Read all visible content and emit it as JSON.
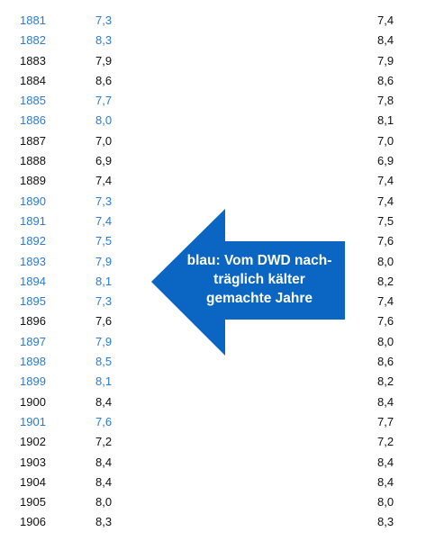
{
  "rows": [
    {
      "year": "1881",
      "v1": "7,3",
      "v2": "7,4",
      "adjusted": true
    },
    {
      "year": "1882",
      "v1": "8,3",
      "v2": "8,4",
      "adjusted": true
    },
    {
      "year": "1883",
      "v1": "7,9",
      "v2": "7,9",
      "adjusted": false
    },
    {
      "year": "1884",
      "v1": "8,6",
      "v2": "8,6",
      "adjusted": false
    },
    {
      "year": "1885",
      "v1": "7,7",
      "v2": "7,8",
      "adjusted": true
    },
    {
      "year": "1886",
      "v1": "8,0",
      "v2": "8,1",
      "adjusted": true
    },
    {
      "year": "1887",
      "v1": "7,0",
      "v2": "7,0",
      "adjusted": false
    },
    {
      "year": "1888",
      "v1": "6,9",
      "v2": "6,9",
      "adjusted": false
    },
    {
      "year": "1889",
      "v1": "7,4",
      "v2": "7,4",
      "adjusted": false
    },
    {
      "year": "1890",
      "v1": "7,3",
      "v2": "7,4",
      "adjusted": true
    },
    {
      "year": "1891",
      "v1": "7,4",
      "v2": "7,5",
      "adjusted": true
    },
    {
      "year": "1892",
      "v1": "7,5",
      "v2": "7,6",
      "adjusted": true
    },
    {
      "year": "1893",
      "v1": "7,9",
      "v2": "8,0",
      "adjusted": true
    },
    {
      "year": "1894",
      "v1": "8,1",
      "v2": "8,2",
      "adjusted": true
    },
    {
      "year": "1895",
      "v1": "7,3",
      "v2": "7,4",
      "adjusted": true
    },
    {
      "year": "1896",
      "v1": "7,6",
      "v2": "7,6",
      "adjusted": false
    },
    {
      "year": "1897",
      "v1": "7,9",
      "v2": "8,0",
      "adjusted": true
    },
    {
      "year": "1898",
      "v1": "8,5",
      "v2": "8,6",
      "adjusted": true
    },
    {
      "year": "1899",
      "v1": "8,1",
      "v2": "8,2",
      "adjusted": true
    },
    {
      "year": "1900",
      "v1": "8,4",
      "v2": "8,4",
      "adjusted": false
    },
    {
      "year": "1901",
      "v1": "7,6",
      "v2": "7,7",
      "adjusted": true
    },
    {
      "year": "1902",
      "v1": "7,2",
      "v2": "7,2",
      "adjusted": false
    },
    {
      "year": "1903",
      "v1": "8,4",
      "v2": "8,4",
      "adjusted": false
    },
    {
      "year": "1904",
      "v1": "8,4",
      "v2": "8,4",
      "adjusted": false
    },
    {
      "year": "1905",
      "v1": "8,0",
      "v2": "8,0",
      "adjusted": false
    },
    {
      "year": "1906",
      "v1": "8,3",
      "v2": "8,3",
      "adjusted": false
    }
  ],
  "callout": {
    "lines": [
      "blau: Vom DWD nach-",
      "träglich kälter",
      "gemachte Jahre"
    ],
    "color": "#0a66c2"
  },
  "colors": {
    "adjusted_text": "#2a7bd0",
    "normal_text": "#111111"
  }
}
